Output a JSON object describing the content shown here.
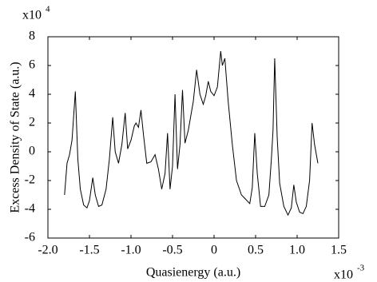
{
  "chart_data": {
    "type": "line",
    "x_label": "Quasienergy (a.u.)",
    "y_label": "Excess Density of State (a.u.)",
    "x_multiplier": {
      "base": "x10",
      "exponent": "-3"
    },
    "y_multiplier": {
      "base": "x10",
      "exponent": "4"
    },
    "color": "#000000",
    "x": [
      -1.8,
      -1.77,
      -1.74,
      -1.71,
      -1.67,
      -1.64,
      -1.61,
      -1.57,
      -1.53,
      -1.5,
      -1.46,
      -1.43,
      -1.39,
      -1.35,
      -1.3,
      -1.26,
      -1.22,
      -1.19,
      -1.15,
      -1.11,
      -1.07,
      -1.04,
      -1.0,
      -0.96,
      -0.94,
      -0.91,
      -0.88,
      -0.85,
      -0.81,
      -0.76,
      -0.71,
      -0.67,
      -0.63,
      -0.59,
      -0.56,
      -0.53,
      -0.5,
      -0.47,
      -0.44,
      -0.41,
      -0.38,
      -0.35,
      -0.31,
      -0.25,
      -0.21,
      -0.17,
      -0.13,
      -0.1,
      -0.07,
      -0.04,
      0.0,
      0.04,
      0.08,
      0.1,
      0.13,
      0.17,
      0.22,
      0.27,
      0.33,
      0.38,
      0.43,
      0.46,
      0.49,
      0.52,
      0.56,
      0.61,
      0.66,
      0.69,
      0.71,
      0.73,
      0.76,
      0.79,
      0.84,
      0.89,
      0.93,
      0.96,
      0.99,
      1.03,
      1.07,
      1.11,
      1.15,
      1.18,
      1.21,
      1.25
    ],
    "values": [
      -3.0,
      -0.8,
      -0.2,
      0.8,
      4.2,
      -0.5,
      -2.6,
      -3.7,
      -3.9,
      -3.4,
      -1.8,
      -3.0,
      -3.8,
      -3.7,
      -2.6,
      -0.5,
      2.4,
      0.0,
      -0.8,
      0.5,
      2.7,
      0.2,
      0.8,
      1.8,
      2.0,
      1.7,
      2.9,
      1.2,
      -0.8,
      -0.7,
      -0.2,
      -1.2,
      -2.6,
      -1.5,
      1.3,
      -2.6,
      -1.0,
      4.0,
      -1.2,
      0.5,
      4.3,
      0.6,
      1.5,
      3.5,
      5.7,
      4.0,
      3.3,
      3.9,
      4.9,
      4.2,
      3.9,
      4.5,
      7.0,
      6.0,
      6.5,
      3.5,
      0.5,
      -2.0,
      -3.0,
      -3.3,
      -3.6,
      -2.5,
      1.3,
      -1.5,
      -3.8,
      -3.8,
      -3.0,
      -0.5,
      1.5,
      6.5,
      1.0,
      -2.2,
      -3.8,
      -4.4,
      -3.9,
      -2.3,
      -3.5,
      -4.2,
      -4.3,
      -3.8,
      -2.0,
      2.0,
      0.5,
      -0.8
    ],
    "xlim": [
      -2,
      1.5
    ],
    "xticks": [
      {
        "value": -2,
        "label": "-2.0"
      },
      -1.5,
      {
        "value": -1,
        "label": "-1.0"
      },
      -0.5,
      0,
      0.5,
      {
        "value": 1,
        "label": "1.0"
      },
      1.5
    ],
    "ylim": [
      -6,
      8
    ],
    "yticks": [
      -6,
      -4,
      -2,
      0,
      2,
      4,
      6,
      8
    ]
  }
}
